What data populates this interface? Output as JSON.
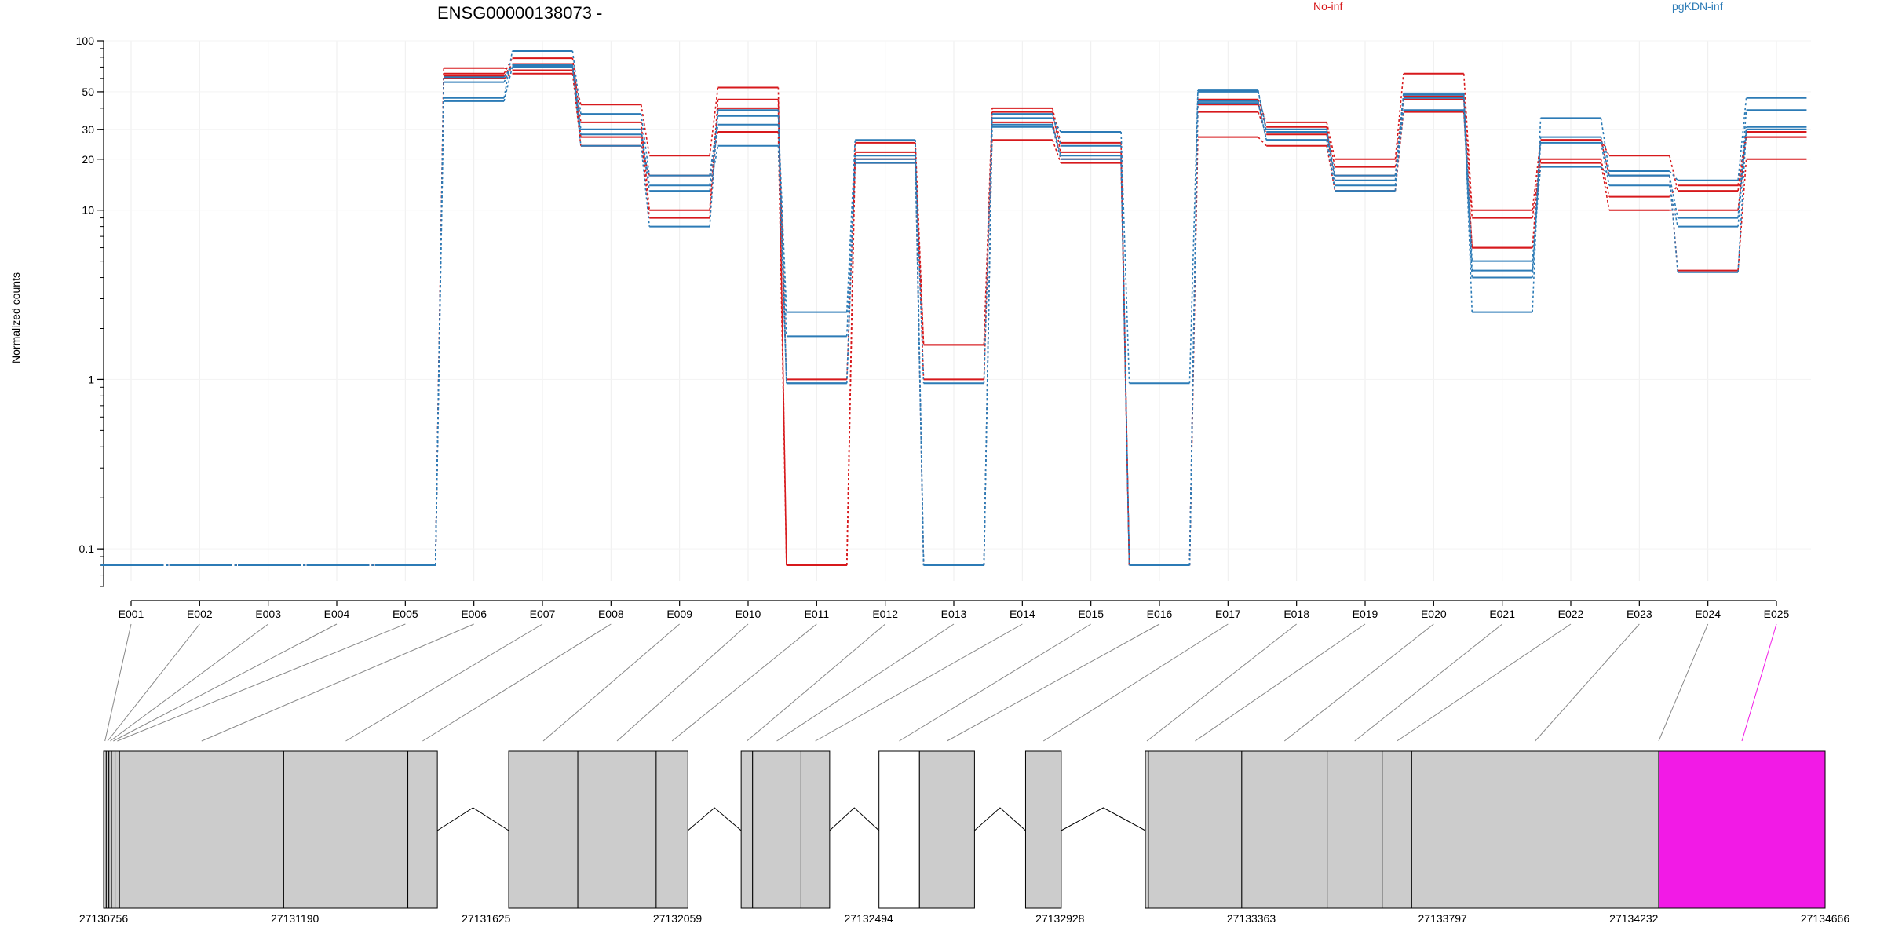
{
  "chart_data": {
    "type": "line",
    "title": "ENSG00000138073 -",
    "xlabel": "",
    "ylabel": "Normalized counts",
    "yscale": "log",
    "ylim": [
      0.06,
      100
    ],
    "y_ticks": [
      {
        "value": 100,
        "label": "100"
      },
      {
        "value": 50,
        "label": "50"
      },
      {
        "value": 30,
        "label": "30"
      },
      {
        "value": 20,
        "label": "20"
      },
      {
        "value": 10,
        "label": "10"
      },
      {
        "value": 1,
        "label": "1"
      },
      {
        "value": 0.1,
        "label": "0.1"
      }
    ],
    "categories": [
      "E001",
      "E002",
      "E003",
      "E004",
      "E005",
      "E006",
      "E007",
      "E008",
      "E009",
      "E010",
      "E011",
      "E012",
      "E013",
      "E014",
      "E015",
      "E016",
      "E017",
      "E018",
      "E019",
      "E020",
      "E021",
      "E022",
      "E023",
      "E024",
      "E025"
    ],
    "legend": [
      {
        "label": "No-inf",
        "color": "#d7191c"
      },
      {
        "label": "pgKDN-inf",
        "color": "#2c7bb6"
      }
    ],
    "series": [
      {
        "group": "No-inf",
        "color": "#d7191c",
        "values": [
          0.08,
          0.08,
          0.08,
          0.08,
          0.08,
          69,
          67,
          42,
          21,
          53,
          0.08,
          25,
          1.6,
          40,
          25,
          0.08,
          45,
          33,
          20,
          64,
          10,
          26,
          21,
          13,
          27
        ]
      },
      {
        "group": "No-inf",
        "color": "#d7191c",
        "values": [
          0.08,
          0.08,
          0.08,
          0.08,
          0.08,
          64,
          79,
          33,
          10,
          45,
          0.08,
          22,
          1.0,
          38,
          22,
          0.08,
          42,
          31,
          18,
          47,
          9,
          20,
          12,
          14,
          29
        ]
      },
      {
        "group": "No-inf",
        "color": "#d7191c",
        "values": [
          0.08,
          0.08,
          0.08,
          0.08,
          0.08,
          62,
          73,
          27,
          9,
          40,
          1.0,
          20,
          0.08,
          33,
          20,
          0.08,
          38,
          28,
          16,
          45,
          6,
          19,
          10,
          10,
          27
        ]
      },
      {
        "group": "No-inf",
        "color": "#d7191c",
        "values": [
          0.08,
          0.08,
          0.08,
          0.08,
          0.08,
          60,
          64,
          24,
          16,
          29,
          0.08,
          19,
          1.6,
          26,
          19,
          0.08,
          27,
          24,
          13,
          38,
          6,
          26,
          16,
          4.4,
          20
        ]
      },
      {
        "group": "pgKDN-inf",
        "color": "#2c7bb6",
        "values": [
          0.08,
          0.08,
          0.08,
          0.08,
          0.08,
          46,
          87,
          37,
          16,
          36,
          2.5,
          26,
          0.08,
          35,
          29,
          0.95,
          51,
          29,
          15,
          49,
          2.5,
          35,
          17,
          15,
          46
        ]
      },
      {
        "group": "pgKDN-inf",
        "color": "#2c7bb6",
        "values": [
          0.08,
          0.08,
          0.08,
          0.08,
          0.08,
          57,
          72,
          30,
          14,
          32,
          1.8,
          21,
          0.95,
          37,
          24,
          0.08,
          50,
          30,
          16,
          48,
          4.4,
          27,
          16,
          9,
          39
        ]
      },
      {
        "group": "pgKDN-inf",
        "color": "#2c7bb6",
        "values": [
          0.08,
          0.08,
          0.08,
          0.08,
          0.08,
          44,
          70,
          28,
          13,
          24,
          0.95,
          20,
          0.08,
          32,
          21,
          0.08,
          44,
          26,
          14,
          39,
          4,
          25,
          14,
          8,
          31
        ]
      },
      {
        "group": "pgKDN-inf",
        "color": "#2c7bb6",
        "values": [
          0.08,
          0.08,
          0.08,
          0.08,
          0.08,
          61,
          71,
          24,
          8,
          39,
          0.95,
          19,
          0.08,
          31,
          20,
          0.08,
          43,
          26,
          13,
          46,
          5,
          18,
          16,
          4.3,
          30
        ]
      }
    ],
    "genomic_axis": {
      "start": 27130756,
      "end": 27134666,
      "tick_labels": [
        "27130756",
        "27131190",
        "27131625",
        "27132059",
        "27132494",
        "27132928",
        "27133363",
        "27133797",
        "27134232",
        "27134666"
      ],
      "exons": [
        {
          "id": "E001",
          "start": 27130756,
          "end": 27130762,
          "color": "#cccccc"
        },
        {
          "id": "E002",
          "start": 27130762,
          "end": 27130768,
          "color": "#cccccc"
        },
        {
          "id": "E003",
          "start": 27130768,
          "end": 27130774,
          "color": "#cccccc"
        },
        {
          "id": "E004",
          "start": 27130774,
          "end": 27130782,
          "color": "#cccccc"
        },
        {
          "id": "E005",
          "start": 27130782,
          "end": 27130792,
          "color": "#cccccc"
        },
        {
          "id": "E006",
          "start": 27130792,
          "end": 27131165,
          "color": "#cccccc"
        },
        {
          "id": "E007",
          "start": 27131165,
          "end": 27131447,
          "color": "#cccccc"
        },
        {
          "id": "E008",
          "start": 27131447,
          "end": 27131514,
          "color": "#cccccc"
        },
        {
          "id": "E009",
          "start": 27131676,
          "end": 27131833,
          "color": "#cccccc"
        },
        {
          "id": "E010",
          "start": 27131833,
          "end": 27132011,
          "color": "#cccccc"
        },
        {
          "id": "E011",
          "start": 27132011,
          "end": 27132083,
          "color": "#cccccc"
        },
        {
          "id": "E012",
          "start": 27132204,
          "end": 27132230,
          "color": "#cccccc"
        },
        {
          "id": "E013",
          "start": 27132230,
          "end": 27132340,
          "color": "#cccccc"
        },
        {
          "id": "E014",
          "start": 27132340,
          "end": 27132405,
          "color": "#cccccc"
        },
        {
          "id": "E015",
          "start": 27132517,
          "end": 27132609,
          "color": "#ffffff"
        },
        {
          "id": "E016",
          "start": 27132609,
          "end": 27132734,
          "color": "#cccccc"
        },
        {
          "id": "E017",
          "start": 27132850,
          "end": 27132931,
          "color": "#cccccc"
        },
        {
          "id": "E018",
          "start": 27133122,
          "end": 27133129,
          "color": "#cccccc"
        },
        {
          "id": "E019",
          "start": 27133129,
          "end": 27133341,
          "color": "#cccccc"
        },
        {
          "id": "E020",
          "start": 27133341,
          "end": 27133535,
          "color": "#cccccc"
        },
        {
          "id": "E021",
          "start": 27133535,
          "end": 27133660,
          "color": "#cccccc"
        },
        {
          "id": "E022",
          "start": 27133660,
          "end": 27133727,
          "color": "#cccccc"
        },
        {
          "id": "E023",
          "start": 27133727,
          "end": 27134288,
          "color": "#cccccc"
        },
        {
          "id": "E024",
          "start": 27134288,
          "end": 27134288,
          "color": "#cccccc"
        },
        {
          "id": "E025",
          "start": 27134288,
          "end": 27134666,
          "color": "#f21ae6"
        }
      ],
      "highlight_color": "#f21ae6"
    }
  }
}
